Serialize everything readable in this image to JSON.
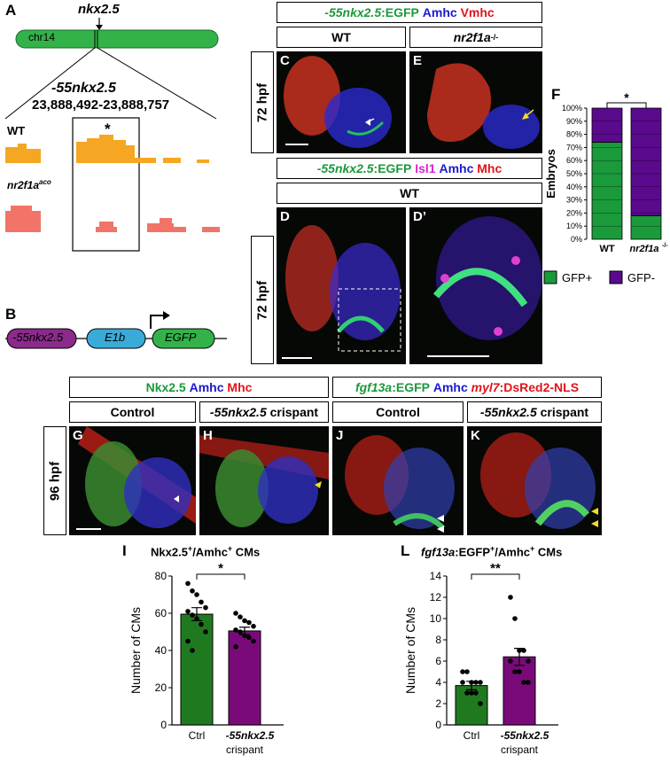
{
  "panels": {
    "A": "A",
    "B": "B",
    "C": "C",
    "D": "D",
    "D_prime": "D’",
    "E": "E",
    "F": "F",
    "G": "G",
    "H": "H",
    "I": "I",
    "J": "J",
    "K": "K",
    "L": "L"
  },
  "panelA": {
    "gene": "nkx2.5",
    "chromosome": "chr14",
    "enhancer": "-55nkx2.5",
    "coords": "23,888,492-23,888,757",
    "track_wt": "WT",
    "track_mut_prefix": "nr2f1a",
    "track_mut_sup": "aco",
    "asterisk": "*"
  },
  "panelB": {
    "enhancer": "-55nkx2.5",
    "promoter": "E1b",
    "reporter": "EGFP"
  },
  "headers": {
    "ce_transgene": "-55nkx2.5",
    "ce_egfp": ":EGFP",
    "ce_amhc": "Amhc",
    "ce_vmhc": "Vmhc",
    "wt": "WT",
    "mut_prefix": "nr2f1a",
    "mut_sup": "-/-",
    "d_transgene": "-55nkx2.5",
    "d_egfp": ":EGFP",
    "d_isl1": "Isl1",
    "d_amhc": "Amhc",
    "d_mhc": "Mhc",
    "d_wt": "WT",
    "stage_72": "72 hpf",
    "stage_96": "96 hpf",
    "gh_nkx": "Nkx2.5",
    "gh_amhc": "Amhc",
    "gh_mhc": "Mhc",
    "jk_fgf": "fgf13a",
    "jk_egfp": ":EGFP",
    "jk_amhc": "Amhc",
    "jk_myl7": "myl7",
    "jk_dsred": ":DsRed2-NLS",
    "control": "Control",
    "crispant_name": "-55nkx2.5",
    "crispant_word": " crispant"
  },
  "colors": {
    "green": "#1a9a3a",
    "purple": "#5a0a8c",
    "dark_green": "#1f7a1f",
    "dark_purple": "#7a0a7a",
    "orange": "#f5a623",
    "salmon": "#f27468",
    "plasmid_purple": "#8a2a8a",
    "plasmid_blue": "#3aaad8",
    "plasmid_green": "#33b24a"
  },
  "chart_data": [
    {
      "id": "F",
      "type": "bar",
      "stacked": true,
      "categories": [
        "WT",
        "nr2f1a-/-"
      ],
      "series": [
        {
          "name": "GFP+",
          "values": [
            74,
            18
          ]
        },
        {
          "name": "GFP-",
          "values": [
            26,
            82
          ]
        }
      ],
      "ylabel": "Embryos",
      "ylim": [
        0,
        100
      ],
      "yticks": [
        "0%",
        "10%",
        "20%",
        "30%",
        "40%",
        "50%",
        "60%",
        "70%",
        "80%",
        "90%",
        "100%"
      ],
      "significance": "*",
      "legend": [
        "GFP+",
        "GFP-"
      ],
      "cat_wt": "WT",
      "cat_mut_prefix": "nr2f1a",
      "cat_mut_sup": "-/-"
    },
    {
      "id": "I",
      "type": "bar",
      "title": "Nkx2.5+/Amhc+ CMs",
      "title_main1": "Nkx2.5",
      "title_sup1": "+",
      "title_main2": "/Amhc",
      "title_sup2": "+",
      "title_main3": " CMs",
      "categories": [
        "Ctrl",
        "-55nkx2.5 crispant"
      ],
      "cat1": "Ctrl",
      "cat2_line1": "-55nkx2.5",
      "cat2_line2": "crispant",
      "values": [
        59.5,
        50.5
      ],
      "errors": [
        3.5,
        2.0
      ],
      "points": [
        [
          76,
          72,
          70,
          66,
          63,
          61,
          59,
          57,
          54,
          50,
          45,
          40
        ],
        [
          60,
          58,
          56,
          55,
          53,
          51,
          50,
          48,
          47,
          45,
          42
        ]
      ],
      "ylabel": "Number of CMs",
      "ylim": [
        0,
        80
      ],
      "yticks": [
        "0",
        "20",
        "40",
        "60",
        "80"
      ],
      "significance": "*"
    },
    {
      "id": "L",
      "type": "bar",
      "title": "fgf13a:EGFP+/Amhc+ CMs",
      "title_it": "fgf13a",
      "title_main1": ":EGFP",
      "title_sup1": "+",
      "title_main2": "/Amhc",
      "title_sup2": "+",
      "title_main3": " CMs",
      "categories": [
        "Ctrl",
        "-55nkx2.5 crispant"
      ],
      "cat1": "Ctrl",
      "cat2_line1": "-55nkx2.5",
      "cat2_line2": "crispant",
      "values": [
        3.7,
        6.4
      ],
      "errors": [
        0.4,
        0.8
      ],
      "points": [
        [
          5,
          5,
          4,
          4,
          4,
          4,
          3,
          3,
          3,
          2
        ],
        [
          12,
          10,
          7,
          7,
          6,
          6,
          5,
          5,
          4,
          4
        ]
      ],
      "ylabel": "Number of CMs",
      "ylim": [
        0,
        14
      ],
      "yticks": [
        "0",
        "2",
        "4",
        "6",
        "8",
        "10",
        "12",
        "14"
      ],
      "significance": "**"
    }
  ]
}
